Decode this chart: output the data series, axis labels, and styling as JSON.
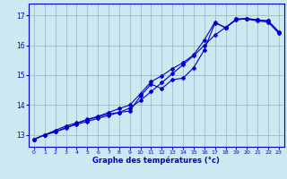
{
  "xlabel": "Graphe des températures (°c)",
  "xlim": [
    -0.5,
    23.5
  ],
  "ylim": [
    12.6,
    17.4
  ],
  "xticks": [
    0,
    1,
    2,
    3,
    4,
    5,
    6,
    7,
    8,
    9,
    10,
    11,
    12,
    13,
    14,
    15,
    16,
    17,
    18,
    19,
    20,
    21,
    22,
    23
  ],
  "yticks": [
    13,
    14,
    15,
    16,
    17
  ],
  "bg_color": "#cce8f0",
  "line_color": "#0000cc",
  "grid_color": "#99bbcc",
  "curve1_x": [
    0,
    1,
    2,
    3,
    4,
    5,
    6,
    7,
    8,
    9,
    10,
    11,
    12,
    13,
    14,
    15,
    16,
    17,
    18,
    19,
    20,
    21,
    22,
    23
  ],
  "curve1_y": [
    12.85,
    13.0,
    13.1,
    13.25,
    13.35,
    13.45,
    13.55,
    13.65,
    13.75,
    13.9,
    14.15,
    14.45,
    14.75,
    15.05,
    15.35,
    15.65,
    16.0,
    16.35,
    16.6,
    16.85,
    16.9,
    16.85,
    16.82,
    16.45
  ],
  "curve2_x": [
    0,
    1,
    2,
    3,
    4,
    5,
    6,
    7,
    8,
    9,
    10,
    11,
    12,
    13,
    14,
    15,
    16,
    17,
    18,
    19,
    20,
    21,
    22,
    23
  ],
  "curve2_y": [
    12.85,
    13.0,
    13.15,
    13.3,
    13.4,
    13.5,
    13.6,
    13.7,
    13.75,
    13.8,
    14.3,
    14.7,
    14.55,
    14.85,
    14.9,
    15.25,
    15.85,
    16.75,
    16.6,
    16.88,
    16.9,
    16.85,
    16.82,
    16.45
  ],
  "curve3_x": [
    0,
    1,
    2,
    3,
    4,
    5,
    6,
    7,
    8,
    9,
    10,
    11,
    12,
    13,
    14,
    15,
    16,
    17,
    18,
    19,
    20,
    21,
    22,
    23
  ],
  "curve3_y": [
    12.85,
    13.0,
    13.1,
    13.22,
    13.38,
    13.52,
    13.62,
    13.75,
    13.88,
    14.0,
    14.38,
    14.78,
    14.98,
    15.22,
    15.42,
    15.68,
    16.18,
    16.78,
    16.58,
    16.88,
    16.88,
    16.82,
    16.78,
    16.4
  ],
  "marker": "D",
  "markersize": 2.0,
  "linewidth": 0.8
}
